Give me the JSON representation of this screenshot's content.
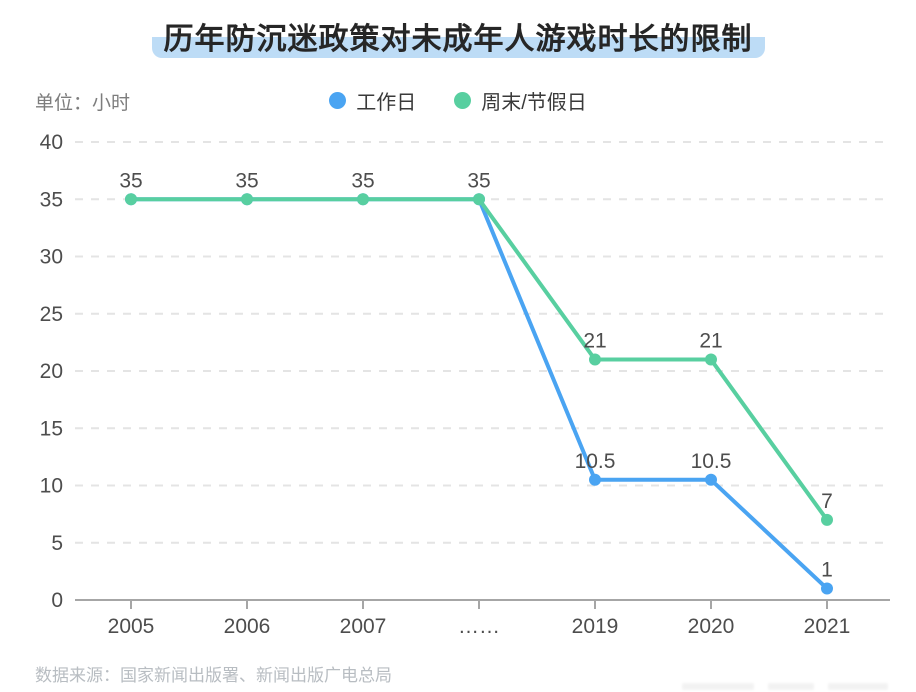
{
  "title": "历年防沉迷政策对未成年人游戏时长的限制",
  "unit_label": "单位：小时",
  "legend": [
    {
      "label": "工作日",
      "color": "#4aa4f2"
    },
    {
      "label": "周末/节假日",
      "color": "#58cfa0"
    }
  ],
  "source": "数据来源：国家新闻出版署、新闻出版广电总局",
  "colors": {
    "workday_line": "#4aa4f2",
    "weekend_line": "#58cfa0",
    "title_highlight": "#bddcf6",
    "gridline": "#e4e4e4",
    "axis_line": "#a6a6a6",
    "tick_text": "#4d4d4d",
    "data_label_text": "#4d4d4d",
    "source_text": "#b8bdc2"
  },
  "chart_data": {
    "type": "line",
    "title": "历年防沉迷政策对未成年人游戏时长的限制",
    "ylabel": "单位：小时",
    "xlabel": "",
    "categories": [
      "2005",
      "2006",
      "2007",
      "……",
      "2019",
      "2020",
      "2021"
    ],
    "series": [
      {
        "name": "工作日",
        "color": "#4aa4f2",
        "values": [
          35,
          35,
          35,
          35,
          10.5,
          10.5,
          1
        ]
      },
      {
        "name": "周末/节假日",
        "color": "#58cfa0",
        "values": [
          35,
          35,
          35,
          35,
          21,
          21,
          7
        ]
      }
    ],
    "ylim": [
      0,
      40
    ],
    "yticks": [
      0,
      5,
      10,
      15,
      20,
      25,
      30,
      35,
      40
    ],
    "grid": true,
    "grid_style": "dashed",
    "legend_position": "top",
    "data_labels": true
  }
}
